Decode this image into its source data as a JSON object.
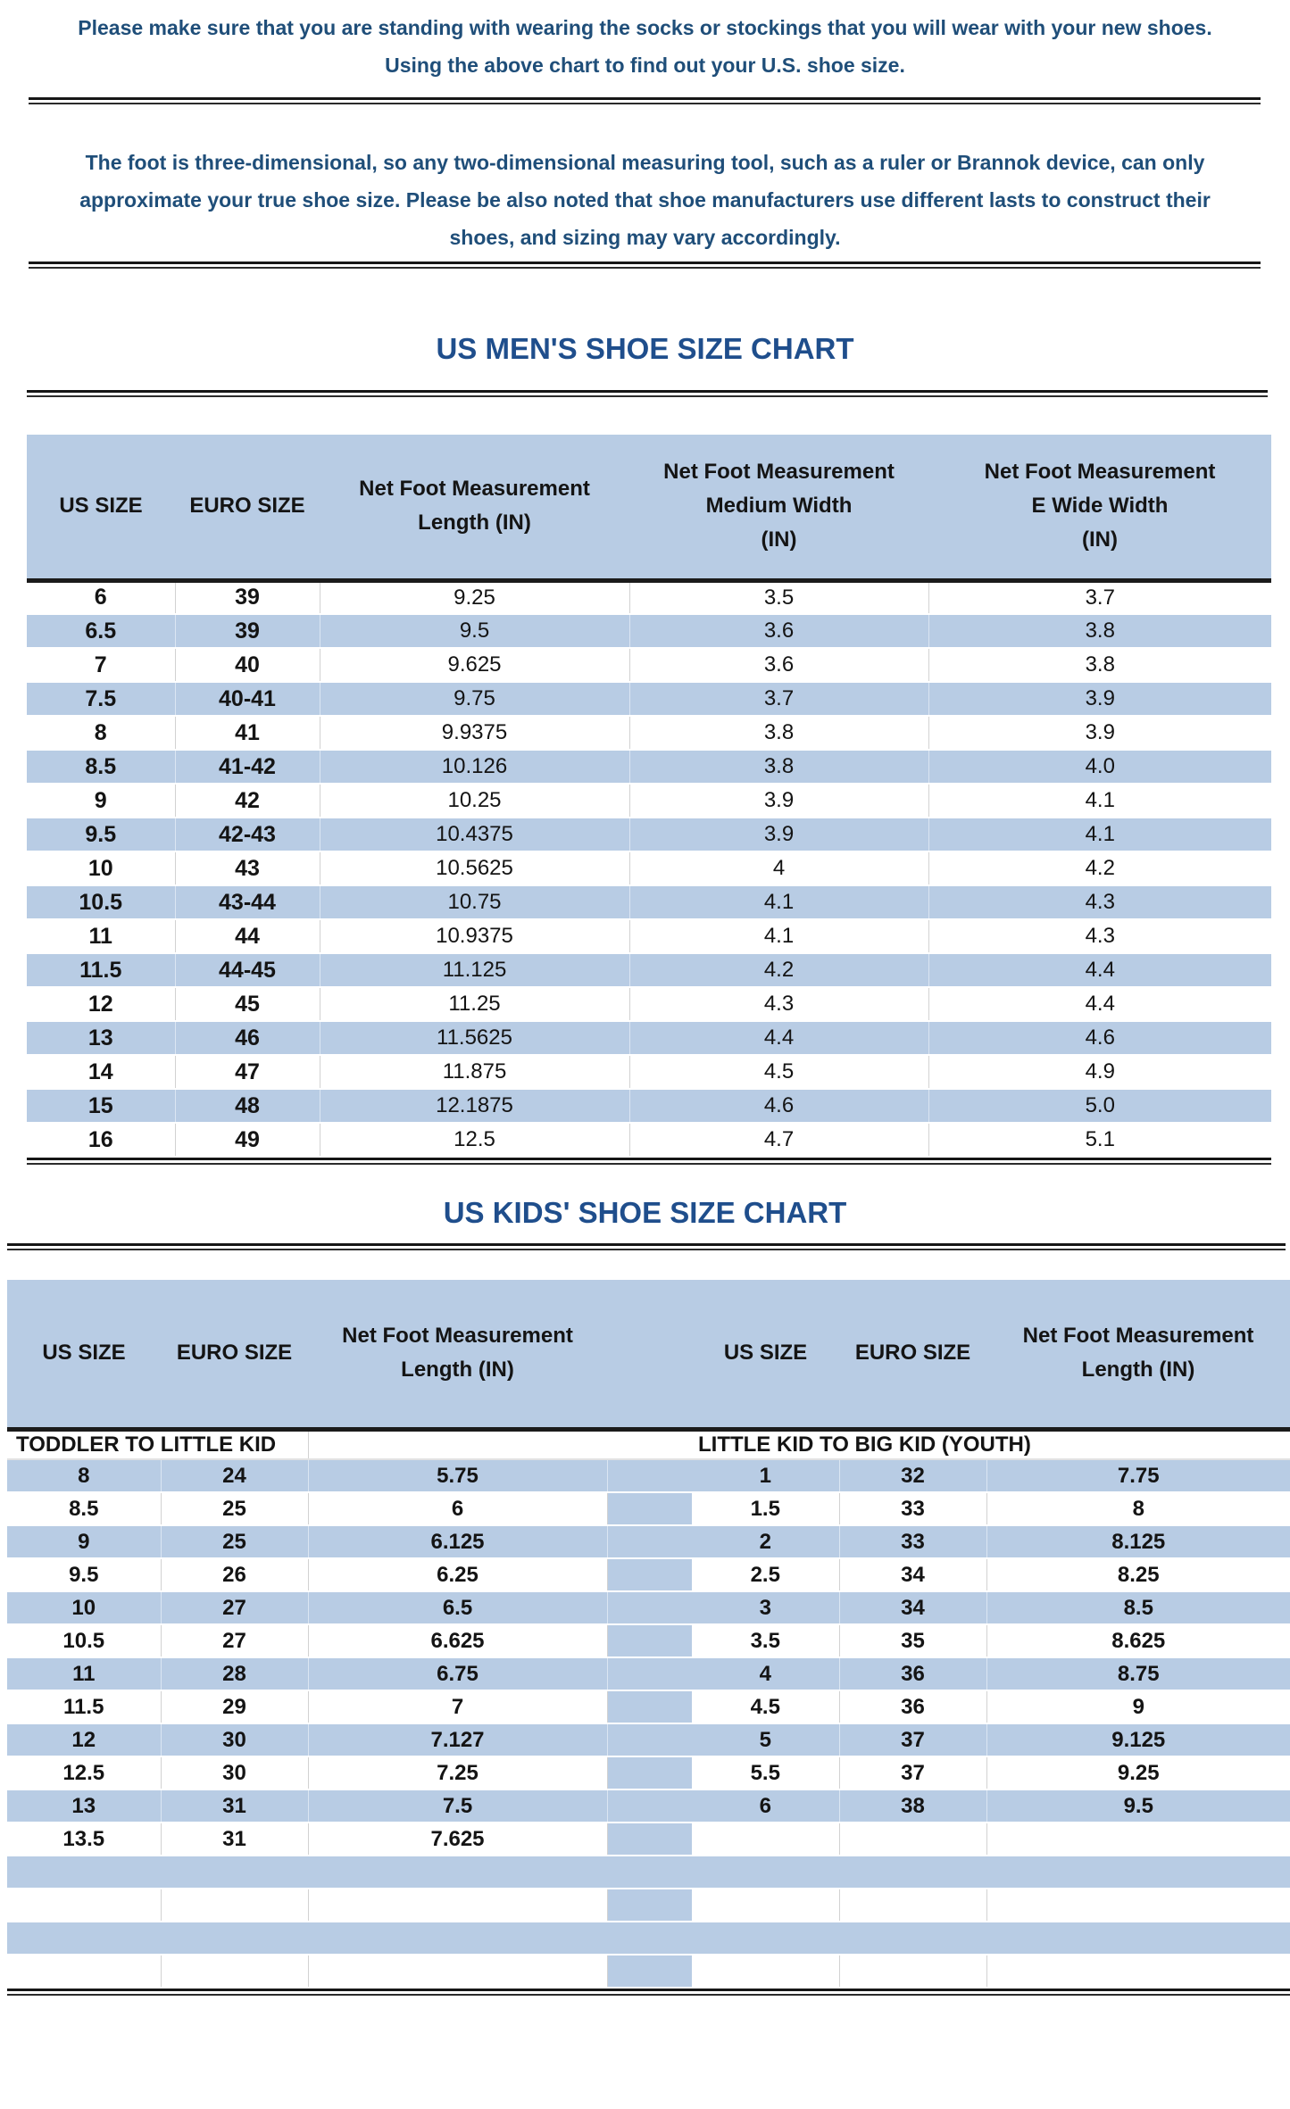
{
  "intro": {
    "paragraph1": "Please make sure that you are standing with wearing the socks or stockings that you will wear with your new shoes.\nUsing the above chart to find out your U.S. shoe size.",
    "paragraph2": "The foot is three-dimensional, so any two-dimensional measuring tool, such as a ruler or Brannok device, can only\napproximate your true shoe size. Please be also noted that shoe manufacturers use different lasts to construct their\nshoes, and sizing may vary accordingly."
  },
  "mens_chart": {
    "title": "US MEN'S SHOE SIZE CHART",
    "columns": [
      "US SIZE",
      "EURO SIZE",
      "Net Foot Measurement\nLength (IN)",
      "Net Foot Measurement\nMedium Width\n（IN)",
      "Net Foot Measurement\nE Wide Width\n（IN）"
    ],
    "rows": [
      [
        "6",
        "39",
        "9.25",
        "3.5",
        "3.7"
      ],
      [
        "6.5",
        "39",
        "9.5",
        "3.6",
        "3.8"
      ],
      [
        "7",
        "40",
        "9.625",
        "3.6",
        "3.8"
      ],
      [
        "7.5",
        "40-41",
        "9.75",
        "3.7",
        "3.9"
      ],
      [
        "8",
        "41",
        "9.9375",
        "3.8",
        "3.9"
      ],
      [
        "8.5",
        "41-42",
        "10.126",
        "3.8",
        "4.0"
      ],
      [
        "9",
        "42",
        "10.25",
        "3.9",
        "4.1"
      ],
      [
        "9.5",
        "42-43",
        "10.4375",
        "3.9",
        "4.1"
      ],
      [
        "10",
        "43",
        "10.5625",
        "4",
        "4.2"
      ],
      [
        "10.5",
        "43-44",
        "10.75",
        "4.1",
        "4.3"
      ],
      [
        "11",
        "44",
        "10.9375",
        "4.1",
        "4.3"
      ],
      [
        "11.5",
        "44-45",
        "11.125",
        "4.2",
        "4.4"
      ],
      [
        "12",
        "45",
        "11.25",
        "4.3",
        "4.4"
      ],
      [
        "13",
        "46",
        "11.5625",
        "4.4",
        "4.6"
      ],
      [
        "14",
        "47",
        "11.875",
        "4.5",
        "4.9"
      ],
      [
        "15",
        "48",
        "12.1875",
        "4.6",
        "5.0"
      ],
      [
        "16",
        "49",
        "12.5",
        "4.7",
        "5.1"
      ]
    ]
  },
  "kids_chart": {
    "title": "US KIDS' SHOE SIZE CHART",
    "left": {
      "columns": [
        "US SIZE",
        "EURO SIZE",
        "Net Foot Measurement\nLength (IN)"
      ],
      "section_label": "TODDLER TO LITTLE KID",
      "rows": [
        [
          "8",
          "24",
          "5.75"
        ],
        [
          "8.5",
          "25",
          "6"
        ],
        [
          "9",
          "25",
          "6.125"
        ],
        [
          "9.5",
          "26",
          "6.25"
        ],
        [
          "10",
          "27",
          "6.5"
        ],
        [
          "10.5",
          "27",
          "6.625"
        ],
        [
          "11",
          "28",
          "6.75"
        ],
        [
          "11.5",
          "29",
          "7"
        ],
        [
          "12",
          "30",
          "7.127"
        ],
        [
          "12.5",
          "30",
          "7.25"
        ],
        [
          "13",
          "31",
          "7.5"
        ],
        [
          "13.5",
          "31",
          "7.625"
        ]
      ]
    },
    "right": {
      "columns": [
        "US SIZE",
        "EURO SIZE",
        "Net Foot Measurement\nLength (IN)"
      ],
      "section_label": "LITTLE KID TO BIG KID (YOUTH)",
      "rows": [
        [
          "1",
          "32",
          "7.75"
        ],
        [
          "1.5",
          "33",
          "8"
        ],
        [
          "2",
          "33",
          "8.125"
        ],
        [
          "2.5",
          "34",
          "8.25"
        ],
        [
          "3",
          "34",
          "8.5"
        ],
        [
          "3.5",
          "35",
          "8.625"
        ],
        [
          "4",
          "36",
          "8.75"
        ],
        [
          "4.5",
          "36",
          "9"
        ],
        [
          "5",
          "37",
          "9.125"
        ],
        [
          "5.5",
          "37",
          "9.25"
        ],
        [
          "6",
          "38",
          "9.5"
        ],
        [
          "",
          "",
          ""
        ]
      ]
    },
    "empty_row_count": 4
  },
  "colors": {
    "accent_blue": "#b8cce4",
    "navy_text": "#1f4e79",
    "title_navy": "#1f4e8c",
    "rule_black": "#161616"
  }
}
